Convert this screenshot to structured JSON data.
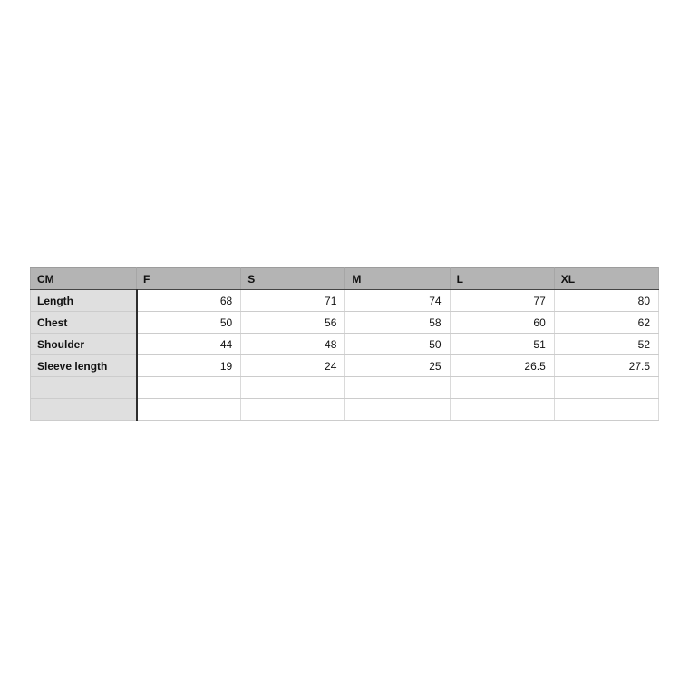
{
  "chart_data": {
    "type": "table",
    "columns": [
      "CM",
      "F",
      "S",
      "M",
      "L",
      "XL"
    ],
    "rows": [
      {
        "label": "Length",
        "values": [
          68,
          71,
          74,
          77,
          80
        ]
      },
      {
        "label": "Chest",
        "values": [
          50,
          56,
          58,
          60,
          62
        ]
      },
      {
        "label": "Shoulder",
        "values": [
          44,
          48,
          50,
          51,
          52
        ]
      },
      {
        "label": "Sleeve length",
        "values": [
          19,
          24,
          25,
          26.5,
          27.5
        ]
      }
    ],
    "empty_trailing_rows": 2,
    "layout_hints": {
      "header_align": "left",
      "value_align": "right",
      "grid": true
    }
  },
  "colors": {
    "page_background": "#ffffff",
    "header_background": "#b4b4b4",
    "row_label_background": "#dfdfdf",
    "grid_line": "#cccccc",
    "dark_divider": "#2e2e2e",
    "text": "#111111"
  }
}
